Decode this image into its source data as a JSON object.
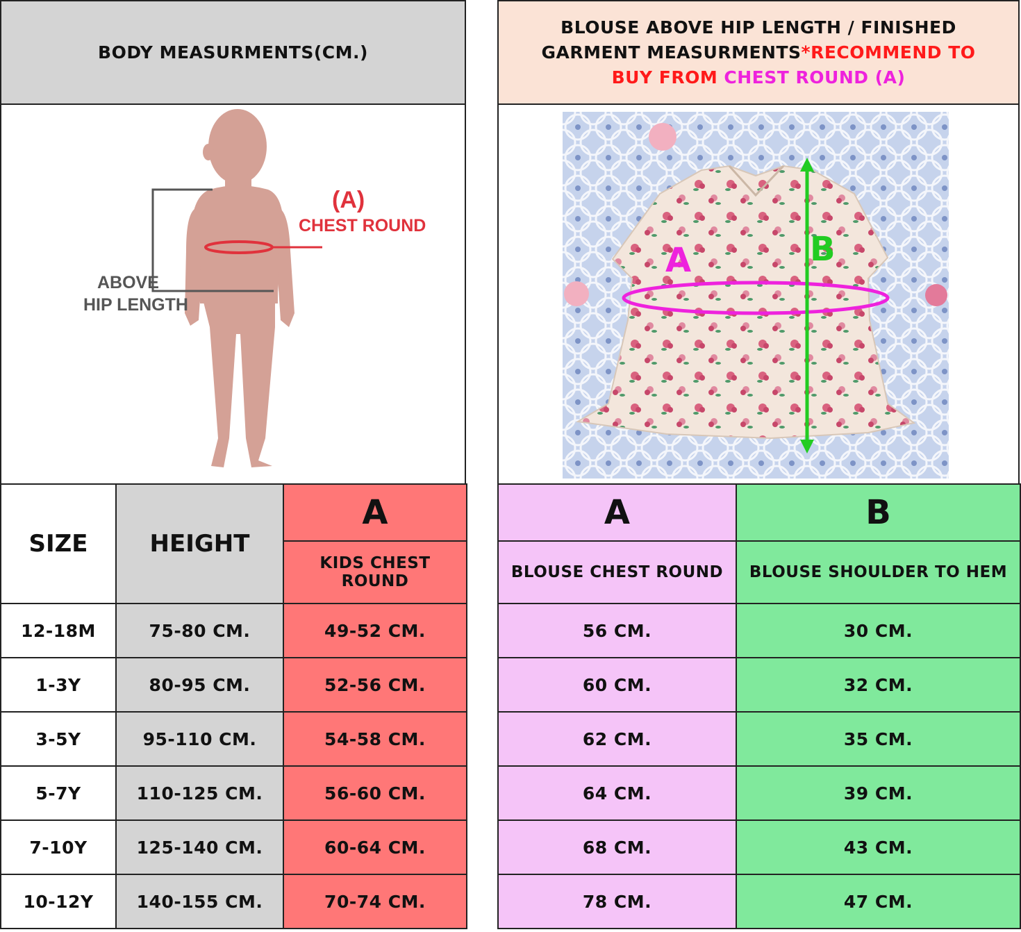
{
  "left_header": {
    "title": "BODY MEASURMENTS(CM.)"
  },
  "right_header": {
    "part1": "BLOUSE ABOVE HIP LENGTH / FINISHED GARMENT MEASURMENTS",
    "part2": "*RECOMMEND TO BUY FROM ",
    "part3": "CHEST ROUND (A)"
  },
  "figure": {
    "marker_a": "(A)",
    "chest_label": "CHEST ROUND",
    "above": "ABOVE",
    "hip_length": "HIP LENGTH"
  },
  "photo": {
    "label_a": "A",
    "label_b": "B"
  },
  "left_table": {
    "size_header": "SIZE",
    "height_header": "HEIGHT",
    "a_header": "A",
    "a_sub": "KIDS CHEST ROUND",
    "rows": [
      {
        "size": "12-18M",
        "height": "75-80 CM.",
        "chest": "49-52 CM."
      },
      {
        "size": "1-3Y",
        "height": "80-95 CM.",
        "chest": "52-56 CM."
      },
      {
        "size": "3-5Y",
        "height": "95-110 CM.",
        "chest": "54-58 CM."
      },
      {
        "size": "5-7Y",
        "height": "110-125 CM.",
        "chest": "56-60 CM."
      },
      {
        "size": "7-10Y",
        "height": "125-140 CM.",
        "chest": "60-64  CM."
      },
      {
        "size": "10-12Y",
        "height": "140-155 CM.",
        "chest": "70-74 CM."
      }
    ]
  },
  "right_table": {
    "a_header": "A",
    "b_header": "B",
    "a_sub": "BLOUSE CHEST ROUND",
    "b_sub": "BLOUSE SHOULDER TO HEM",
    "rows": [
      {
        "chest": "56 CM.",
        "length": "30 CM."
      },
      {
        "chest": "60 CM.",
        "length": "32 CM."
      },
      {
        "chest": "62 CM.",
        "length": "35 CM."
      },
      {
        "chest": "64 CM.",
        "length": "39 CM."
      },
      {
        "chest": "68 CM.",
        "length": "43 CM."
      },
      {
        "chest": "78 CM.",
        "length": "47 CM."
      }
    ]
  },
  "colors": {
    "grey": "#d4d4d4",
    "red_col": "#ff7777",
    "pink_col": "#f5c4f8",
    "green_col": "#80e99c",
    "peach": "#fbe3d6",
    "silhouette": "#d4a196",
    "chest_red": "#e0323c",
    "magenta": "#ee22dd",
    "green_arrow": "#22cc22"
  }
}
